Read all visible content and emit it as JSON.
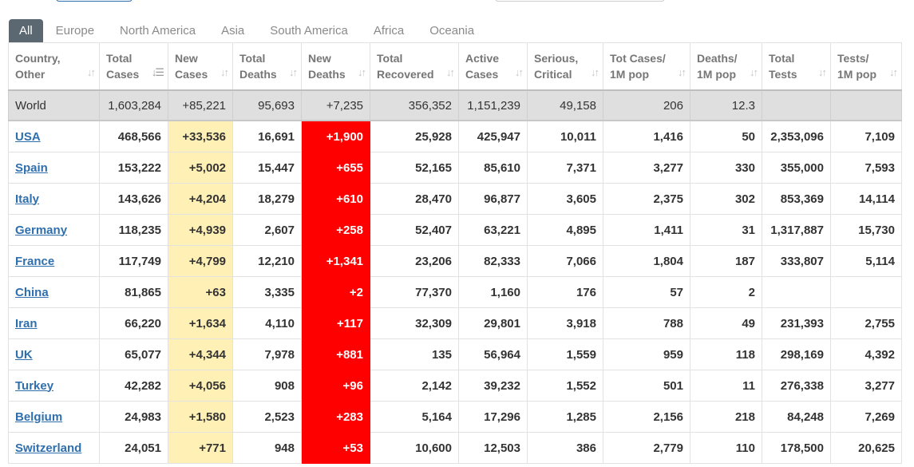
{
  "tabs": [
    "All",
    "Europe",
    "North America",
    "Asia",
    "South America",
    "Africa",
    "Oceania"
  ],
  "active_tab": "All",
  "columns": [
    [
      "Country,",
      "Other"
    ],
    [
      "Total",
      "Cases"
    ],
    [
      "New",
      "Cases"
    ],
    [
      "Total",
      "Deaths"
    ],
    [
      "New",
      "Deaths"
    ],
    [
      "Total",
      "Recovered"
    ],
    [
      "Active",
      "Cases"
    ],
    [
      "Serious,",
      "Critical"
    ],
    [
      "Tot Cases/",
      "1M pop"
    ],
    [
      "Deaths/",
      "1M pop"
    ],
    [
      "Total",
      "Tests"
    ],
    [
      "Tests/",
      "1M pop"
    ]
  ],
  "world": [
    "World",
    "1,603,284",
    "+85,221",
    "95,693",
    "+7,235",
    "356,352",
    "1,151,239",
    "49,158",
    "206",
    "12.3",
    "",
    ""
  ],
  "rows": [
    [
      "USA",
      "468,566",
      "+33,536",
      "16,691",
      "+1,900",
      "25,928",
      "425,947",
      "10,011",
      "1,416",
      "50",
      "2,353,096",
      "7,109"
    ],
    [
      "Spain",
      "153,222",
      "+5,002",
      "15,447",
      "+655",
      "52,165",
      "85,610",
      "7,371",
      "3,277",
      "330",
      "355,000",
      "7,593"
    ],
    [
      "Italy",
      "143,626",
      "+4,204",
      "18,279",
      "+610",
      "28,470",
      "96,877",
      "3,605",
      "2,375",
      "302",
      "853,369",
      "14,114"
    ],
    [
      "Germany",
      "118,235",
      "+4,939",
      "2,607",
      "+258",
      "52,407",
      "63,221",
      "4,895",
      "1,411",
      "31",
      "1,317,887",
      "15,730"
    ],
    [
      "France",
      "117,749",
      "+4,799",
      "12,210",
      "+1,341",
      "23,206",
      "82,333",
      "7,066",
      "1,804",
      "187",
      "333,807",
      "5,114"
    ],
    [
      "China",
      "81,865",
      "+63",
      "3,335",
      "+2",
      "77,370",
      "1,160",
      "176",
      "57",
      "2",
      "",
      ""
    ],
    [
      "Iran",
      "66,220",
      "+1,634",
      "4,110",
      "+117",
      "32,309",
      "29,801",
      "3,918",
      "788",
      "49",
      "231,393",
      "2,755"
    ],
    [
      "UK",
      "65,077",
      "+4,344",
      "7,978",
      "+881",
      "135",
      "56,964",
      "1,559",
      "959",
      "118",
      "298,169",
      "4,392"
    ],
    [
      "Turkey",
      "42,282",
      "+4,056",
      "908",
      "+96",
      "2,142",
      "39,232",
      "1,552",
      "501",
      "11",
      "276,338",
      "3,277"
    ],
    [
      "Belgium",
      "24,983",
      "+1,580",
      "2,523",
      "+283",
      "5,164",
      "17,296",
      "1,285",
      "2,156",
      "218",
      "84,248",
      "7,269"
    ],
    [
      "Switzerland",
      "24,051",
      "+771",
      "948",
      "+53",
      "10,600",
      "12,503",
      "386",
      "2,779",
      "110",
      "178,500",
      "20,625"
    ]
  ]
}
